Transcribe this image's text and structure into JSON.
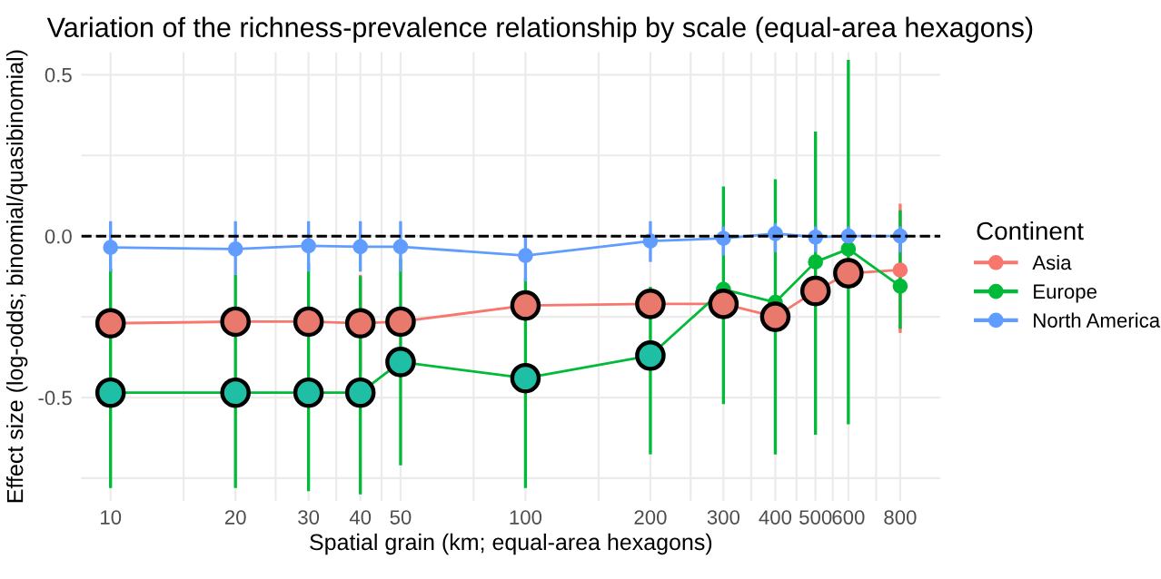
{
  "chart_data": {
    "type": "line",
    "title": "Variation of the richness-prevalence relationship by scale (equal-area hexagons)",
    "xlabel": "Spatial grain (km; equal-area hexagons)",
    "ylabel": "Effect size (log-odds; binomial/quasibinomial)",
    "legend_title": "Continent",
    "log": "x",
    "xlim": [
      8.5,
      1000
    ],
    "ylim": [
      -0.82,
      0.57
    ],
    "xticks": [
      10,
      {
        "value": 15,
        "label": null
      },
      20,
      {
        "value": 25,
        "label": null
      },
      30,
      {
        "value": 35,
        "label": null
      },
      40,
      {
        "value": 45,
        "label": null
      },
      50,
      {
        "value": 75,
        "label": null
      },
      100,
      {
        "value": 150,
        "label": null
      },
      200,
      {
        "value": 250,
        "label": null
      },
      300,
      {
        "value": 350,
        "label": null
      },
      400,
      {
        "value": 450,
        "label": null
      },
      500,
      {
        "value": 550,
        "label": null
      },
      600,
      {
        "value": 700,
        "label": null
      },
      800
    ],
    "yticks": [
      {
        "value": -0.75,
        "label": null
      },
      {
        "value": -0.5,
        "label": "-0.5"
      },
      {
        "value": -0.25,
        "label": null
      },
      {
        "value": 0,
        "label": "0.0"
      },
      {
        "value": 0.25,
        "label": null
      },
      {
        "value": 0.5,
        "label": "0.5"
      }
    ],
    "grid": true,
    "legend": "right",
    "marker": "circle",
    "line_style": "solid",
    "ref_lines": [
      {
        "axis": "y",
        "value": 0,
        "color": "#000000",
        "line_style": "dashed"
      }
    ],
    "series": [
      {
        "name": "Asia",
        "color": "#f8766d",
        "x": [
          10,
          20,
          30,
          40,
          50,
          100,
          200,
          300,
          400,
          500,
          600,
          800
        ],
        "values": [
          -0.27,
          -0.265,
          -0.265,
          -0.27,
          -0.265,
          -0.215,
          -0.21,
          -0.21,
          -0.25,
          -0.17,
          -0.115,
          -0.105
        ],
        "errors": [
          null,
          null,
          null,
          [
            -0.42,
            -0.12
          ],
          null,
          null,
          null,
          null,
          null,
          null,
          null,
          [
            -0.3,
            0.1
          ]
        ]
      },
      {
        "name": "Europe",
        "color": "#00ba38",
        "x": [
          10,
          20,
          30,
          40,
          50,
          100,
          200,
          300,
          400,
          500,
          600,
          800
        ],
        "values": [
          -0.485,
          -0.485,
          -0.485,
          -0.485,
          -0.39,
          -0.44,
          -0.37,
          -0.165,
          -0.205,
          -0.08,
          -0.04,
          -0.155
        ],
        "errors": [
          [
            -0.78,
            -0.1
          ],
          [
            -0.78,
            -0.12
          ],
          [
            -0.79,
            -0.083
          ],
          [
            -0.8,
            -0.124
          ],
          [
            -0.71,
            -0.07
          ],
          [
            -0.78,
            -0.13
          ],
          [
            -0.676,
            -0.157
          ],
          [
            -0.52,
            0.154
          ],
          [
            -0.676,
            0.176
          ],
          [
            -0.615,
            0.324
          ],
          [
            -0.583,
            0.546
          ],
          [
            -0.287,
            0.08
          ]
        ]
      },
      {
        "name": "North America",
        "color": "#619cff",
        "x": [
          10,
          20,
          30,
          40,
          50,
          100,
          200,
          300,
          400,
          500,
          600,
          800
        ],
        "values": [
          -0.035,
          -0.04,
          -0.03,
          -0.033,
          -0.033,
          -0.06,
          -0.015,
          -0.007,
          0.008,
          -0.003,
          0.0,
          0.0
        ],
        "errors": [
          [
            -0.11,
            0.046
          ],
          [
            -0.12,
            0.046
          ],
          [
            -0.11,
            0.046
          ],
          [
            -0.11,
            0.046
          ],
          [
            -0.11,
            0.046
          ],
          [
            -0.14,
            0.0
          ],
          [
            -0.08,
            0.046
          ],
          [
            -0.06,
            0.03
          ],
          [
            -0.05,
            0.04
          ],
          [
            -0.05,
            0.03
          ],
          [
            -0.05,
            0.03
          ],
          [
            -0.05,
            0.03
          ]
        ]
      },
      {
        "type": "scatter",
        "x": [
          10,
          20,
          30,
          40,
          50,
          100,
          200,
          300,
          400,
          500,
          600,
          10,
          20,
          30,
          40,
          50,
          100,
          200
        ],
        "values": [
          -0.27,
          -0.265,
          -0.265,
          -0.27,
          -0.265,
          -0.215,
          -0.21,
          -0.21,
          -0.25,
          -0.17,
          -0.115,
          -0.485,
          -0.485,
          -0.485,
          -0.485,
          -0.39,
          -0.44,
          -0.37
        ],
        "colors": [
          "#e8796c",
          "#e8796c",
          "#e8796c",
          "#e8796c",
          "#e8796c",
          "#e8796c",
          "#e8796c",
          "#e8796c",
          "#e8796c",
          "#e8796c",
          "#e8796c",
          "#1fbfa5",
          "#1fbfa5",
          "#1fbfa5",
          "#1fbfa5",
          "#1fbfa5",
          "#1fbfa5",
          "#1fbfa5"
        ]
      }
    ]
  }
}
